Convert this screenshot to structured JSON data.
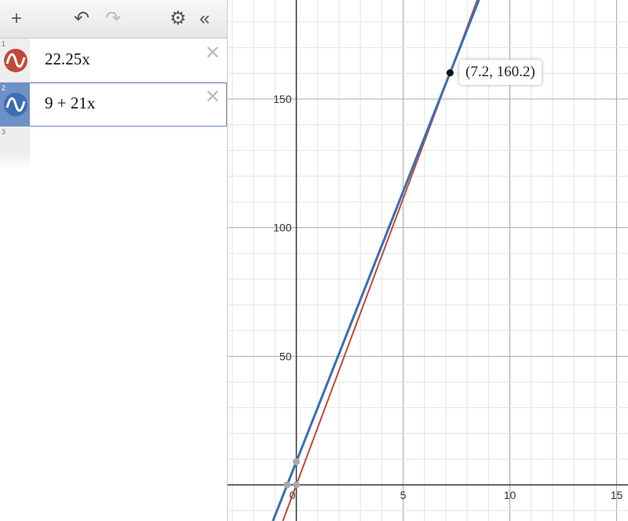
{
  "toolbar": {
    "add": "+",
    "undo": "↶",
    "redo": "↷",
    "settings": "⚙",
    "collapse": "«"
  },
  "expressions": [
    {
      "num": "1",
      "latex": "22.25x",
      "color": "#c0493b",
      "slope": 22.25,
      "intercept": 0,
      "delete": "✕"
    },
    {
      "num": "2",
      "latex": "9 + 21x",
      "color": "#3b6eb2",
      "slope": 21,
      "intercept": 9,
      "delete": "✕",
      "selected": true
    },
    {
      "num": "3"
    }
  ],
  "graph": {
    "xlim": [
      -3.2,
      15.5
    ],
    "ylim": [
      -14,
      204
    ],
    "x_ticks": [
      "0",
      "5",
      "10",
      "15"
    ],
    "y_ticks": [
      "50",
      "100",
      "150"
    ],
    "x_minor": 1,
    "y_minor": 10,
    "point": {
      "x": 7.2,
      "y": 160.2,
      "label": "(7.2, 160.2)"
    },
    "gray_points": [
      {
        "x": 0,
        "y": 9
      },
      {
        "x": -0.4286,
        "y": 0
      },
      {
        "x": 0,
        "y": 0
      }
    ]
  }
}
